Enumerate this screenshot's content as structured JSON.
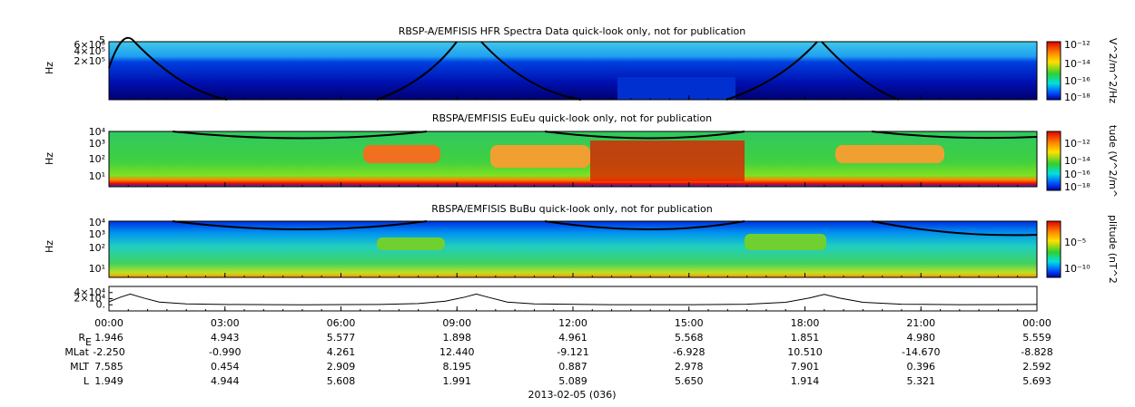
{
  "panels": [
    {
      "title": "RBSP-A/EMFISIS  HFR Spectra Data quick-look only, not for publication",
      "ylabel": "Hz",
      "yticks": [
        "5",
        "6×10⁵",
        "4×10⁵",
        "2×10⁵"
      ],
      "colorbar_label": "V^2/m^2/Hz",
      "colorbar_ticks": [
        "10⁻¹²",
        "10⁻¹⁴",
        "10⁻¹⁶",
        "10⁻¹⁸"
      ]
    },
    {
      "title": "RBSPA/EMFISIS  EuEu quick-look only, not for publication",
      "ylabel": "Hz",
      "yticks": [
        "10⁴",
        "10³",
        "10²",
        "10¹"
      ],
      "colorbar_label": "tude (V^2/m^",
      "colorbar_ticks": [
        "10⁻¹²",
        "10⁻¹⁴",
        "10⁻¹⁶",
        "10⁻¹⁸"
      ]
    },
    {
      "title": "RBSPA/EMFISIS  BuBu quick-look only, not for publication",
      "ylabel": "Hz",
      "yticks": [
        "10⁴",
        "10³",
        "10²",
        "10¹"
      ],
      "colorbar_label": "plitude (nT^2",
      "colorbar_ticks": [
        "10⁻⁵",
        "10⁻¹⁰"
      ]
    }
  ],
  "chart_data": {
    "type": "line",
    "xlim": [
      0,
      24
    ],
    "ylim": [
      -20000,
      60000
    ],
    "yticks": [
      {
        "value": 40000,
        "label": "4×10⁴"
      },
      {
        "value": 20000,
        "label": "2×10⁴"
      },
      {
        "value": 0,
        "label": "0."
      }
    ],
    "xticks": [
      {
        "value": 0,
        "label": "00:00"
      },
      {
        "value": 3,
        "label": "03:00"
      },
      {
        "value": 6,
        "label": "06:00"
      },
      {
        "value": 9,
        "label": "09:00"
      },
      {
        "value": 12,
        "label": "12:00"
      },
      {
        "value": 15,
        "label": "15:00"
      },
      {
        "value": 18,
        "label": "18:00"
      },
      {
        "value": 21,
        "label": "21:00"
      },
      {
        "value": 24,
        "label": "00:00"
      }
    ],
    "x": [
      0,
      0.3,
      0.55,
      0.9,
      1.3,
      2,
      3,
      5,
      7,
      8,
      8.7,
      9.2,
      9.5,
      9.8,
      10.3,
      11,
      13,
      15,
      16.5,
      17.5,
      18.1,
      18.5,
      18.9,
      19.5,
      20.5,
      22,
      24
    ],
    "values": [
      10000,
      25000,
      35000,
      22000,
      9000,
      3000,
      1000,
      0,
      1000,
      4000,
      12000,
      25000,
      35000,
      25000,
      9000,
      3000,
      500,
      300,
      2000,
      8000,
      22000,
      34000,
      22000,
      8000,
      2000,
      500,
      1000
    ],
    "color": "#000000"
  },
  "ephemeris": [
    {
      "label": "R",
      "sub": "E",
      "values": [
        "1.946",
        "4.943",
        "5.577",
        "1.898",
        "4.961",
        "5.568",
        "1.851",
        "4.980",
        "5.559"
      ]
    },
    {
      "label": "MLat",
      "values": [
        "-2.250",
        "-0.990",
        "4.261",
        "12.440",
        "-9.121",
        "-6.928",
        "10.510",
        "-14.670",
        "-8.828"
      ]
    },
    {
      "label": "MLT",
      "values": [
        "7.585",
        "0.454",
        "2.909",
        "8.195",
        "0.887",
        "2.978",
        "7.901",
        "0.396",
        "2.592"
      ]
    },
    {
      "label": "L",
      "values": [
        "1.949",
        "4.944",
        "5.608",
        "1.991",
        "5.089",
        "5.650",
        "1.914",
        "5.321",
        "5.693"
      ]
    }
  ],
  "date_label": "2013-02-05 (036)"
}
